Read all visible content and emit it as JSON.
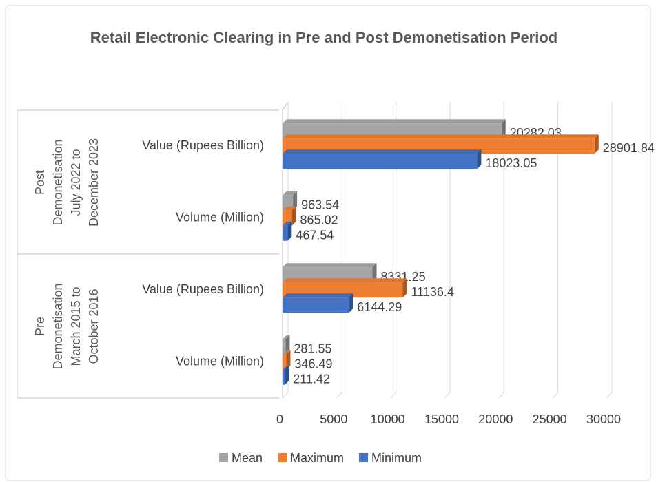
{
  "chart_data": {
    "type": "bar",
    "orientation": "horizontal",
    "title": "Retail Electronic Clearing in Pre and Post Demonetisation Period",
    "groups": [
      {
        "name": "Pre Demonetisation March 2015 to October 2016",
        "categories": [
          0,
          1
        ]
      },
      {
        "name": "Post Demonetisation July 2022 to December 2023",
        "categories": [
          2,
          3
        ]
      }
    ],
    "categories": [
      "Volume (Million)",
      "Value (Rupees Billion)",
      "Volume (Million)",
      "Value (Rupees Billion)"
    ],
    "series": [
      {
        "name": "Mean",
        "color": "#a5a5a5",
        "values": [
          281.55,
          8331.25,
          963.54,
          20282.03
        ]
      },
      {
        "name": "Maximum",
        "color": "#ed7d31",
        "values": [
          346.49,
          11136.4,
          865.02,
          28901.84
        ]
      },
      {
        "name": "Minimum",
        "color": "#4472c4",
        "values": [
          211.42,
          6144.29,
          467.54,
          18023.05
        ]
      }
    ],
    "xlim": [
      0,
      30000
    ],
    "xticks": [
      0,
      5000,
      10000,
      15000,
      20000,
      25000,
      30000
    ],
    "grid": true,
    "legend": "bottom"
  }
}
